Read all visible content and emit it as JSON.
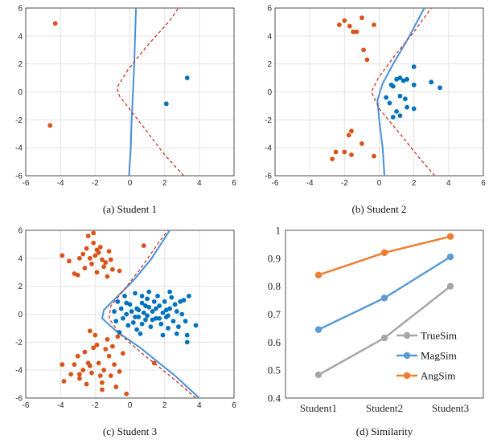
{
  "colors": {
    "orange": "#D95319",
    "blue": "#0072BD",
    "boundary": "#4A90D9",
    "dashed": "#C0392B",
    "gray": "#A6A6A6",
    "mag": "#5B9BD5",
    "ang": "#ED7D31"
  },
  "chart_data": [
    {
      "type": "scatter",
      "caption": "(a) Student 1",
      "xlim": [
        -6,
        6
      ],
      "ylim": [
        -6,
        6
      ],
      "xticks": [
        -6,
        -4,
        -2,
        0,
        2,
        4,
        6
      ],
      "yticks": [
        -6,
        -4,
        -2,
        0,
        2,
        4,
        6
      ],
      "grid": true,
      "series": [
        {
          "color": "orange",
          "points": [
            [
              -4.3,
              4.9
            ],
            [
              -4.6,
              -2.4
            ]
          ]
        },
        {
          "color": "blue",
          "points": [
            [
              3.3,
              1.0
            ],
            [
              2.1,
              -0.85
            ]
          ]
        }
      ],
      "curves": [
        {
          "style": "solid",
          "color": "boundary",
          "points": [
            [
              -0.05,
              -6
            ],
            [
              0.05,
              -4
            ],
            [
              0.1,
              -2
            ],
            [
              0.18,
              0
            ],
            [
              0.25,
              2
            ],
            [
              0.3,
              4
            ],
            [
              0.35,
              6
            ]
          ]
        },
        {
          "style": "dashed",
          "color": "dashed",
          "points": [
            [
              3.1,
              -6
            ],
            [
              2.0,
              -4.5
            ],
            [
              0.9,
              -2.7
            ],
            [
              -0.6,
              -0.3
            ],
            [
              -0.75,
              0.3
            ],
            [
              -0.1,
              1.6
            ],
            [
              1.0,
              3.3
            ],
            [
              2.3,
              5.1
            ],
            [
              2.8,
              6
            ]
          ]
        }
      ]
    },
    {
      "type": "scatter",
      "caption": "(b) Student 2",
      "xlim": [
        -6,
        6
      ],
      "ylim": [
        -6,
        6
      ],
      "xticks": [
        -6,
        -4,
        -2,
        0,
        2,
        4,
        6
      ],
      "yticks": [
        -6,
        -4,
        -2,
        0,
        2,
        4,
        6
      ],
      "grid": true,
      "series": [
        {
          "color": "orange",
          "points": [
            [
              -2.3,
              4.8
            ],
            [
              -2.0,
              5.1
            ],
            [
              -1.7,
              4.7
            ],
            [
              -1.5,
              4.3
            ],
            [
              -1.3,
              4.3
            ],
            [
              -1.0,
              5.3
            ],
            [
              -0.9,
              3.0
            ],
            [
              -0.7,
              2.3
            ],
            [
              -0.3,
              4.8
            ],
            [
              -1.6,
              -2.8
            ],
            [
              -1.75,
              -3.1
            ],
            [
              -2.0,
              -4.3
            ],
            [
              -1.6,
              -4.5
            ],
            [
              -2.5,
              -4.3
            ],
            [
              -2.7,
              -4.8
            ],
            [
              -1.0,
              -3.7
            ],
            [
              -0.3,
              -4.6
            ]
          ]
        },
        {
          "color": "blue",
          "points": [
            [
              0.7,
              0.5
            ],
            [
              0.8,
              0.4
            ],
            [
              1.0,
              0.9
            ],
            [
              1.2,
              1.0
            ],
            [
              1.4,
              0.8
            ],
            [
              1.6,
              0.9
            ],
            [
              2.0,
              1.8
            ],
            [
              2.0,
              0.5
            ],
            [
              3.0,
              0.7
            ],
            [
              3.5,
              0.3
            ],
            [
              1.2,
              -0.3
            ],
            [
              1.5,
              -0.5
            ],
            [
              0.6,
              -0.8
            ],
            [
              0.4,
              -0.4
            ],
            [
              1.6,
              -1.1
            ],
            [
              2.0,
              -1.2
            ],
            [
              1.0,
              -1.4
            ],
            [
              0.8,
              -1.8
            ],
            [
              1.2,
              -1.7
            ]
          ]
        }
      ],
      "curves": [
        {
          "style": "solid",
          "color": "boundary",
          "points": [
            [
              0.3,
              -6
            ],
            [
              0.2,
              -4
            ],
            [
              0.0,
              -2
            ],
            [
              -0.1,
              -0.6
            ],
            [
              0.2,
              0.6
            ],
            [
              0.8,
              2.0
            ],
            [
              1.7,
              3.9
            ],
            [
              2.6,
              6
            ]
          ]
        },
        {
          "style": "dashed",
          "color": "dashed",
          "points": [
            [
              3.2,
              -6
            ],
            [
              2.3,
              -4.7
            ],
            [
              1.2,
              -3.0
            ],
            [
              0.0,
              -1.2
            ],
            [
              -0.45,
              0.0
            ],
            [
              -0.05,
              1.0
            ],
            [
              0.9,
              2.6
            ],
            [
              2.0,
              4.3
            ],
            [
              3.0,
              6
            ]
          ]
        }
      ]
    },
    {
      "type": "scatter",
      "caption": "(c) Student 3",
      "xlim": [
        -6,
        6
      ],
      "ylim": [
        -6,
        6
      ],
      "xticks": [
        -6,
        -4,
        -2,
        0,
        2,
        4,
        6
      ],
      "yticks": [
        -6,
        -4,
        -2,
        0,
        2,
        4,
        6
      ],
      "grid": true,
      "series": [
        {
          "color": "orange",
          "points": [
            [
              -3.9,
              4.2
            ],
            [
              -3.5,
              3.8
            ],
            [
              -3.2,
              2.9
            ],
            [
              -3.0,
              2.8
            ],
            [
              -2.9,
              4.0
            ],
            [
              -2.7,
              4.3
            ],
            [
              -2.6,
              3.3
            ],
            [
              -2.5,
              4.7
            ],
            [
              -2.4,
              5.6
            ],
            [
              -2.3,
              4.0
            ],
            [
              -2.2,
              3.6
            ],
            [
              -2.1,
              5.1
            ],
            [
              -2.0,
              4.2
            ],
            [
              -1.9,
              3.0
            ],
            [
              -1.8,
              4.4
            ],
            [
              -1.7,
              4.8
            ],
            [
              -1.6,
              3.9
            ],
            [
              -1.5,
              3.4
            ],
            [
              -1.4,
              3.7
            ],
            [
              -1.3,
              2.7
            ],
            [
              -1.2,
              4.5
            ],
            [
              -1.1,
              3.9
            ],
            [
              -1.0,
              3.2
            ],
            [
              -0.6,
              3.1
            ],
            [
              -2.1,
              5.8
            ],
            [
              -1.9,
              4.6
            ],
            [
              0.8,
              4.9
            ],
            [
              -3.9,
              -3.6
            ],
            [
              -3.8,
              -4.8
            ],
            [
              -3.4,
              -4.3
            ],
            [
              -3.2,
              -3.6
            ],
            [
              -3.0,
              -3.0
            ],
            [
              -2.9,
              -4.6
            ],
            [
              -2.7,
              -4.0
            ],
            [
              -2.6,
              -2.7
            ],
            [
              -2.5,
              -5.0
            ],
            [
              -2.4,
              -3.5
            ],
            [
              -2.3,
              -3.7
            ],
            [
              -2.2,
              -4.2
            ],
            [
              -2.1,
              -2.4
            ],
            [
              -2.0,
              -1.5
            ],
            [
              -1.9,
              -2.2
            ],
            [
              -1.8,
              -3.5
            ],
            [
              -1.7,
              -4.4
            ],
            [
              -1.6,
              -5.4
            ],
            [
              -1.5,
              -4.0
            ],
            [
              -1.4,
              -2.5
            ],
            [
              -1.3,
              -1.8
            ],
            [
              -1.2,
              -3.0
            ],
            [
              -1.1,
              -4.4
            ],
            [
              -1.0,
              -2.3
            ],
            [
              -0.9,
              -3.6
            ],
            [
              -0.8,
              -5.2
            ],
            [
              -0.7,
              -1.6
            ],
            [
              -0.6,
              -4.1
            ],
            [
              -0.4,
              -2.8
            ],
            [
              -2.3,
              -1.2
            ],
            [
              -1.6,
              -4.9
            ],
            [
              -0.2,
              -5.7
            ],
            [
              1.4,
              -3.5
            ],
            [
              -2.9,
              -4.3
            ]
          ]
        },
        {
          "color": "blue",
          "points": [
            [
              -0.9,
              0.2
            ],
            [
              -0.8,
              -0.5
            ],
            [
              -0.7,
              0.9
            ],
            [
              -0.6,
              -1.3
            ],
            [
              -0.5,
              0.4
            ],
            [
              -0.4,
              -0.3
            ],
            [
              -0.3,
              1.3
            ],
            [
              -0.2,
              0.0
            ],
            [
              -0.1,
              -0.8
            ],
            [
              0.0,
              0.7
            ],
            [
              0.1,
              0.2
            ],
            [
              0.2,
              -0.6
            ],
            [
              0.3,
              1.5
            ],
            [
              0.4,
              0.4
            ],
            [
              0.5,
              -0.2
            ],
            [
              0.6,
              -1.4
            ],
            [
              0.7,
              0.8
            ],
            [
              0.8,
              0.1
            ],
            [
              0.9,
              -0.4
            ],
            [
              1.0,
              1.1
            ],
            [
              1.1,
              0.5
            ],
            [
              1.2,
              -0.9
            ],
            [
              1.3,
              0.2
            ],
            [
              1.4,
              0.9
            ],
            [
              1.5,
              -0.3
            ],
            [
              1.6,
              1.3
            ],
            [
              1.7,
              0.6
            ],
            [
              1.8,
              -0.7
            ],
            [
              1.9,
              0.1
            ],
            [
              2.0,
              0.9
            ],
            [
              2.1,
              -0.2
            ],
            [
              2.2,
              -1.0
            ],
            [
              2.3,
              0.4
            ],
            [
              2.4,
              1.2
            ],
            [
              2.5,
              -0.5
            ],
            [
              2.6,
              0.7
            ],
            [
              2.7,
              0.2
            ],
            [
              2.8,
              -0.9
            ],
            [
              2.9,
              0.9
            ],
            [
              3.0,
              0.0
            ],
            [
              3.1,
              1.0
            ],
            [
              3.2,
              -0.5
            ],
            [
              3.3,
              -1.5
            ],
            [
              3.4,
              1.3
            ],
            [
              0.3,
              -0.2
            ],
            [
              0.7,
              -0.7
            ],
            [
              1.1,
              1.6
            ],
            [
              1.5,
              0.4
            ],
            [
              1.9,
              -1.5
            ],
            [
              2.3,
              1.6
            ],
            [
              2.7,
              -1.4
            ],
            [
              0.5,
              0.3
            ],
            [
              0.9,
              0.6
            ],
            [
              1.3,
              -0.4
            ],
            [
              1.7,
              -0.3
            ],
            [
              2.1,
              0.3
            ],
            [
              -0.2,
              0.8
            ],
            [
              3.8,
              -0.8
            ],
            [
              2.2,
              -0.1
            ],
            [
              0.4,
              -1.1
            ],
            [
              1.0,
              -0.1
            ],
            [
              3.3,
              -2.0
            ],
            [
              0.7,
              1.3
            ]
          ]
        }
      ],
      "curves": [
        {
          "style": "solid",
          "color": "boundary",
          "points": [
            [
              4.0,
              -6
            ],
            [
              2.6,
              -4.4
            ],
            [
              0.6,
              -2.4
            ],
            [
              -0.8,
              -1.2
            ],
            [
              -1.6,
              -0.3
            ],
            [
              -1.5,
              0.3
            ],
            [
              -0.7,
              1.3
            ],
            [
              0.2,
              2.4
            ],
            [
              1.2,
              3.9
            ],
            [
              2.3,
              6
            ]
          ]
        },
        {
          "style": "dashed",
          "color": "dashed",
          "points": [
            [
              3.8,
              -6
            ],
            [
              2.4,
              -4.5
            ],
            [
              0.7,
              -2.8
            ],
            [
              -0.6,
              -1.4
            ],
            [
              -1.2,
              -0.3
            ],
            [
              -1.1,
              0.6
            ],
            [
              -0.3,
              1.8
            ],
            [
              0.7,
              3.4
            ],
            [
              1.7,
              5.2
            ],
            [
              2.2,
              6
            ]
          ]
        }
      ]
    },
    {
      "type": "line",
      "caption": "(d) Similarity",
      "categories": [
        "Student1",
        "Student2",
        "Student3"
      ],
      "ylim": [
        0.4,
        1.0
      ],
      "yticks": [
        "0.4",
        "0.5",
        "0.6",
        "0.7",
        "0.8",
        "0.9",
        "1"
      ],
      "grid": false,
      "legend_position": "bottom-right",
      "series": [
        {
          "name": "TrueSim",
          "color": "gray",
          "values": [
            0.483,
            0.615,
            0.8
          ]
        },
        {
          "name": "MagSim",
          "color": "mag",
          "values": [
            0.645,
            0.758,
            0.905
          ]
        },
        {
          "name": "AngSim",
          "color": "ang",
          "values": [
            0.84,
            0.92,
            0.978
          ]
        }
      ]
    }
  ]
}
